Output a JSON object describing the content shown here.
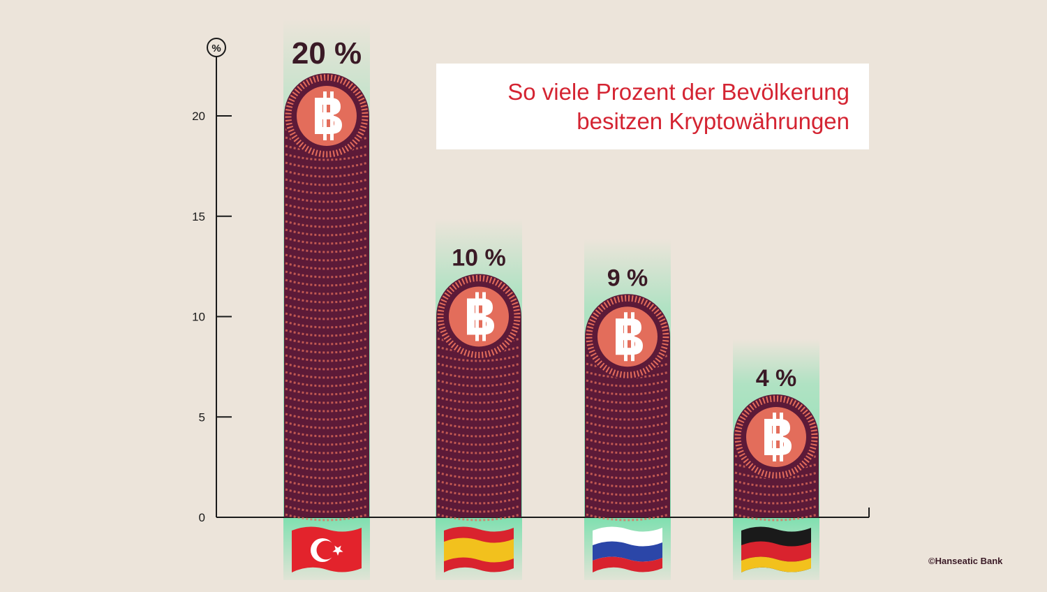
{
  "title_lines": [
    "So viele Prozent der Bevölkerung",
    "besitzen Kryptowährungen"
  ],
  "copyright": "©Hanseatic Bank",
  "colors": {
    "background": "#ece4da",
    "title_text": "#d42432",
    "coin_dark": "#5c1a38",
    "coin_light": "#e36d5b",
    "glow": "#7fe0b0",
    "text_dark": "#3a1a26"
  },
  "icons": [
    "percent-icon",
    "bitcoin-icon",
    "flag-turkey-icon",
    "flag-spain-icon",
    "flag-russia-icon",
    "flag-germany-icon"
  ],
  "chart_data": {
    "type": "bar",
    "title": "So viele Prozent der Bevölkerung besitzen Kryptowährungen",
    "y_unit": "%",
    "ylim": [
      0,
      23
    ],
    "yticks": [
      0,
      5,
      10,
      15,
      20
    ],
    "categories": [
      "Türkei",
      "Spanien",
      "Russland",
      "Deutschland"
    ],
    "category_icons": [
      "flag-turkey-icon",
      "flag-spain-icon",
      "flag-russia-icon",
      "flag-germany-icon"
    ],
    "values": [
      20,
      10,
      9,
      4
    ],
    "data_labels": [
      "20 %",
      "10 %",
      "9 %",
      "4 %"
    ],
    "grid": false,
    "legend": "none"
  }
}
